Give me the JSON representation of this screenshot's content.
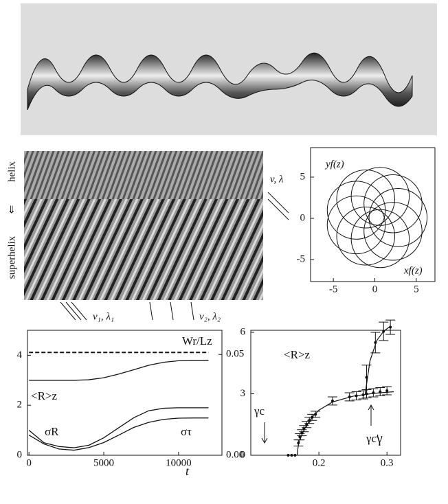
{
  "kymograph": {
    "top_label": "helix",
    "arrow": "⇐",
    "bottom_label": "superhelix",
    "wave_label": "v, λ",
    "left_wave_label": "v₁, λ₁",
    "right_wave_label": "v₂, λ₂"
  },
  "chart_data": [
    {
      "type": "circles",
      "x_label": "xf(z)",
      "y_label": "yf(z)",
      "x": [
        2.8,
        2.19,
        0.65,
        -1.1,
        -2.24,
        -2.24,
        -1.1,
        0.65,
        2.19
      ],
      "y": [
        0.1,
        1.77,
        2.66,
        2.35,
        0.99,
        -0.79,
        -2.15,
        -2.46,
        -1.57
      ],
      "r": [
        3.5,
        3.5,
        3.5,
        3.5,
        3.5,
        3.5,
        3.5,
        3.5,
        3.5
      ],
      "color": "#111",
      "xlim": [
        -7.75,
        7.25
      ],
      "ylim": [
        -7.67,
        8.58
      ],
      "xticks": [
        -5,
        0,
        5
      ],
      "yticks": [
        -5,
        0,
        5
      ]
    },
    {
      "type": "line",
      "x_label": "t",
      "x": [
        0,
        1000,
        2000,
        3000,
        4000,
        5000,
        6000,
        7000,
        8000,
        9000,
        10000,
        11000,
        12000
      ],
      "series": [
        {
          "name": "Wr/Lz",
          "color": "#111",
          "dash": true,
          "axis": "y2",
          "values": [
            0.051,
            0.051,
            0.051,
            0.051,
            0.051,
            0.051,
            0.051,
            0.051,
            0.051,
            0.051,
            0.051,
            0.051,
            0.051
          ]
        },
        {
          "name": "<R>z",
          "color": "#111",
          "values": [
            3.0,
            3.0,
            3.0,
            3.0,
            3.02,
            3.1,
            3.25,
            3.42,
            3.6,
            3.72,
            3.78,
            3.8,
            3.8
          ]
        },
        {
          "name": "σR",
          "color": "#111",
          "values": [
            1.0,
            0.5,
            0.35,
            0.3,
            0.4,
            0.7,
            1.1,
            1.5,
            1.78,
            1.88,
            1.9,
            1.9,
            1.9
          ]
        },
        {
          "name": "στ",
          "color": "#111",
          "axis": "y2",
          "values": [
            0.01,
            0.0056,
            0.0031,
            0.0025,
            0.0038,
            0.0063,
            0.01,
            0.0138,
            0.0163,
            0.0178,
            0.0184,
            0.0185,
            0.0185
          ]
        }
      ],
      "xlim": [
        -100,
        12900
      ],
      "xticks": [
        0,
        5000,
        10000
      ],
      "ylim": [
        0,
        5
      ],
      "yticks": [
        0,
        2,
        4
      ],
      "y2lim": [
        0,
        0.062
      ],
      "y2ticks": [
        {
          "value": 0,
          "label": "0.00"
        },
        {
          "value": 0.05,
          "label": "0.05"
        }
      ]
    },
    {
      "type": "errorbar",
      "x_label": "γ",
      "annotations": [
        "<R>z",
        "γc",
        "γc'"
      ],
      "series": [
        {
          "color": "#111",
          "x": [
            0.155,
            0.16,
            0.165,
            0.17,
            0.172,
            0.175,
            0.178,
            0.182,
            0.186,
            0.19,
            0.195,
            0.22,
            0.245,
            0.255,
            0.265,
            0.27,
            0.28,
            0.29,
            0.3
          ],
          "values": [
            0,
            0,
            0,
            0.6,
            0.9,
            1.1,
            1.3,
            1.5,
            1.7,
            1.85,
            2.0,
            2.65,
            2.85,
            2.9,
            2.95,
            3.0,
            3.05,
            3.1,
            3.15
          ],
          "errors": [
            0,
            0,
            0,
            0.15,
            0.15,
            0.15,
            0.15,
            0.15,
            0.15,
            0.15,
            0.15,
            0.2,
            0.2,
            0.2,
            0.2,
            0.2,
            0.2,
            0.2,
            0.2
          ]
        },
        {
          "color": "#111",
          "x": [
            0.27,
            0.283,
            0.295,
            0.305
          ],
          "values": [
            3.8,
            5.5,
            6.05,
            6.25
          ],
          "errors": [
            0.6,
            0.5,
            0.45,
            0.35
          ]
        }
      ],
      "fits": [
        {
          "x": [
            0.168,
            0.17,
            0.175,
            0.18,
            0.19,
            0.2,
            0.22,
            0.25,
            0.28,
            0.31
          ],
          "values": [
            0,
            0.55,
            1.0,
            1.35,
            1.85,
            2.2,
            2.6,
            2.88,
            3.02,
            3.1
          ]
        },
        {
          "x": [
            0.268,
            0.275,
            0.285,
            0.295,
            0.305
          ],
          "values": [
            3.0,
            4.6,
            5.6,
            6.05,
            6.3
          ]
        }
      ],
      "xlim": [
        0.1,
        0.32
      ],
      "xticks": [
        0.2,
        0.3
      ],
      "ylim": [
        0,
        6.1
      ],
      "yticks": [
        0,
        3,
        6
      ]
    }
  ]
}
